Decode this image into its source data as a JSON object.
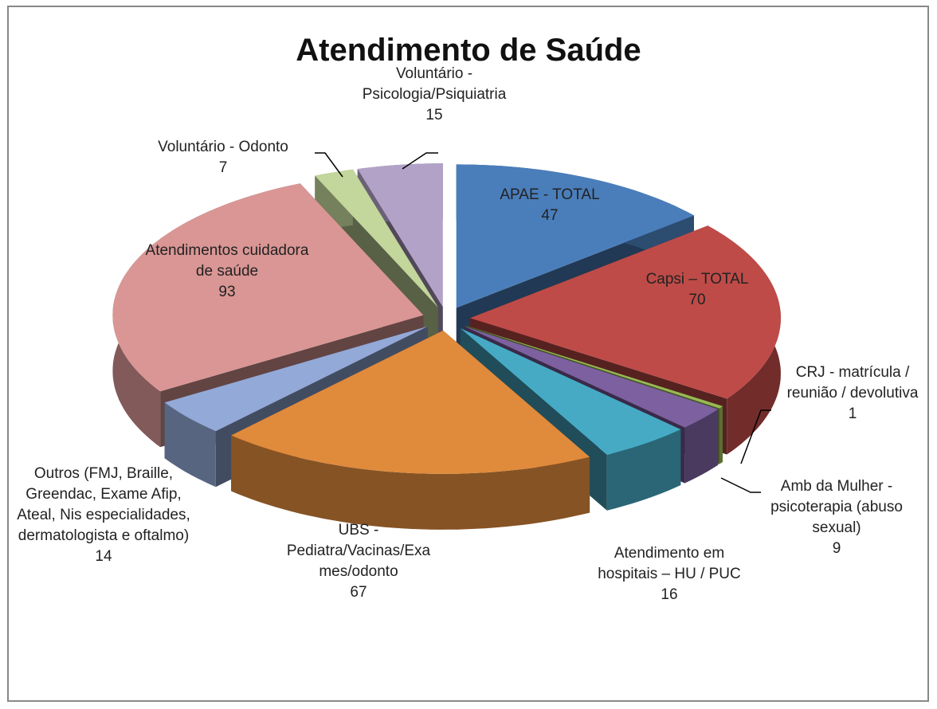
{
  "chart_data": {
    "type": "pie3d",
    "title": "Atendimento de Saúde",
    "categories": [
      "APAE - TOTAL",
      "Capsi – TOTAL",
      "CRJ - matrícula / reunião / devolutiva",
      "Amb da Mulher - psicoterapia (abuso sexual)",
      "Atendimento em hospitais – HU / PUC",
      "UBS - Pediatra/Vacinas/Exames/odonto",
      "Outros (FMJ, Braille, Greendac, Exame Afip, Ateal, Nis especialidades, dermatologista e oftalmo)",
      "Atendimentos cuidadora de saúde",
      "Voluntário - Odonto",
      "Voluntário - Psicologia/Psiquiatria"
    ],
    "values": [
      47,
      70,
      1,
      9,
      16,
      67,
      14,
      93,
      7,
      15
    ],
    "colors": [
      "#4a7ebb",
      "#be4b48",
      "#98b954",
      "#7d60a0",
      "#46aac5",
      "#e08a3c",
      "#93a9d7",
      "#d99694",
      "#c3d69b",
      "#b3a2c7"
    ]
  }
}
